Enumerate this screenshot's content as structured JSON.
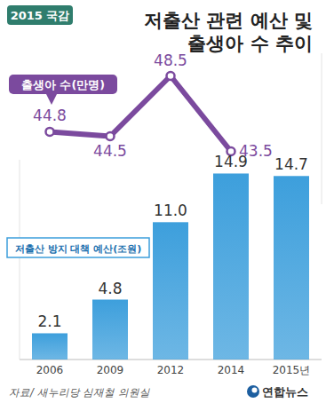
{
  "chart_data": {
    "type": "bar",
    "badge": "2015 국감",
    "title": "저출산 관련 예산 및\n출생아 수 추이",
    "categories": [
      "2006",
      "2009",
      "2012",
      "2014",
      "2015년"
    ],
    "series": [
      {
        "name": "저출산 방지 대책 예산(조원)",
        "type": "bar",
        "color": "#3d9fdc",
        "values": [
          2.1,
          4.8,
          11.0,
          14.9,
          14.7
        ],
        "value_labels": [
          "2.1",
          "4.8",
          "11.0",
          "14.9",
          "14.7"
        ]
      },
      {
        "name": "출생아 수(만명)",
        "type": "line",
        "color": "#7b4a9e",
        "axis": "y2",
        "marker": "circle",
        "values": [
          44.8,
          44.5,
          48.5,
          43.5,
          null
        ]
      }
    ],
    "ylim": [
      0,
      16
    ],
    "y2lim": [
      40,
      50
    ],
    "data_labels": true,
    "tick_labels": "x",
    "source": "자료/ 새누리당 심재철 의원실",
    "logo": "연합뉴스"
  }
}
